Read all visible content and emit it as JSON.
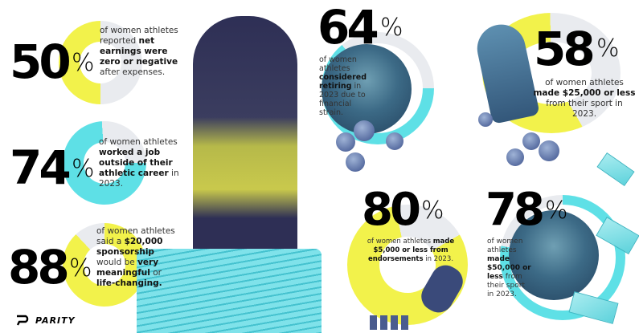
{
  "brand": {
    "name": "PARITY",
    "logo_icon": "parity-p-logo-icon"
  },
  "colors": {
    "yellow": "#f2f24b",
    "cyan": "#5ee0e6",
    "gray": "#e9ebef",
    "text": "#333333"
  },
  "stats": [
    {
      "value": "50",
      "pct": "%",
      "percent": 50,
      "ring_color": "#f2f24b",
      "segments": [
        {
          "t": "of women athletes reported ",
          "b": false
        },
        {
          "t": "net earnings were zero or negative",
          "b": true
        },
        {
          "t": " after expenses.",
          "b": false
        }
      ]
    },
    {
      "value": "74",
      "pct": "%",
      "percent": 74,
      "ring_color": "#5ee0e6",
      "segments": [
        {
          "t": "of women athletes ",
          "b": false
        },
        {
          "t": "worked a job outside of their athletic career",
          "b": true
        },
        {
          "t": " in 2023.",
          "b": false
        }
      ]
    },
    {
      "value": "88",
      "pct": "%",
      "percent": 88,
      "ring_color": "#f2f24b",
      "segments": [
        {
          "t": "of women athletes said a ",
          "b": false
        },
        {
          "t": "$20,000 sponsorship",
          "b": true
        },
        {
          "t": " would be ",
          "b": false
        },
        {
          "t": "very meaningful",
          "b": true
        },
        {
          "t": " or ",
          "b": false
        },
        {
          "t": "life-changing.",
          "b": true
        }
      ]
    },
    {
      "value": "64",
      "pct": "%",
      "percent": 64,
      "ring_color": "#5ee0e6",
      "segments": [
        {
          "t": "of women athletes ",
          "b": false
        },
        {
          "t": "considered retiring",
          "b": true
        },
        {
          "t": " in 2023 due to financial strain.",
          "b": false
        }
      ]
    },
    {
      "value": "58",
      "pct": "%",
      "percent": 58,
      "ring_color": "#f2f24b",
      "segments": [
        {
          "t": "of women athletes ",
          "b": false
        },
        {
          "t": "made $25,000 or less",
          "b": true
        },
        {
          "t": " from their sport in 2023.",
          "b": false
        }
      ]
    },
    {
      "value": "80",
      "pct": "%",
      "percent": 80,
      "ring_color": "#f2f24b",
      "segments": [
        {
          "t": "of women athletes ",
          "b": false
        },
        {
          "t": "made $5,000 or less from endorsements",
          "b": true
        },
        {
          "t": " in 2023.",
          "b": false
        }
      ]
    },
    {
      "value": "78",
      "pct": "%",
      "percent": 78,
      "ring_color": "#5ee0e6",
      "segments": [
        {
          "t": "of women athletes ",
          "b": false
        },
        {
          "t": "made $50,000 or less",
          "b": true
        },
        {
          "t": " from their sport in 2023.",
          "b": false
        }
      ]
    }
  ]
}
